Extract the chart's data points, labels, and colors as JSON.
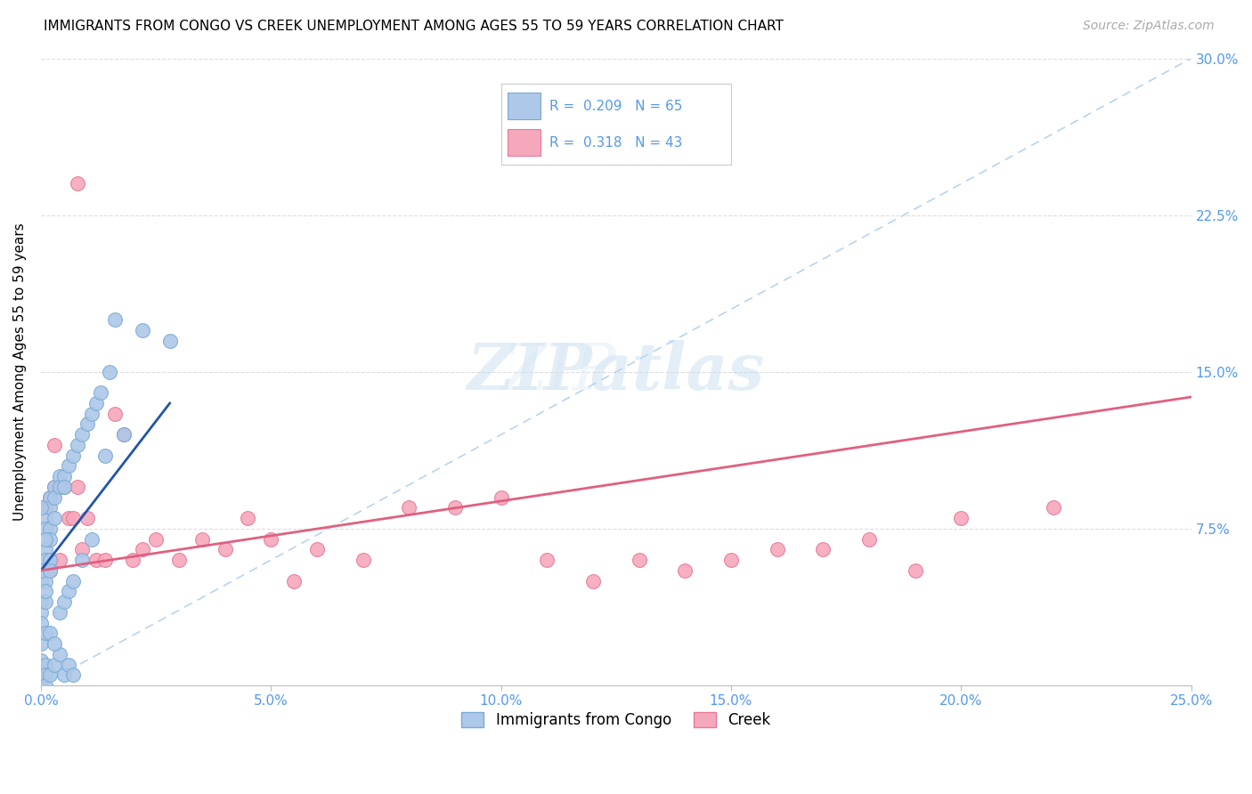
{
  "title": "IMMIGRANTS FROM CONGO VS CREEK UNEMPLOYMENT AMONG AGES 55 TO 59 YEARS CORRELATION CHART",
  "source": "Source: ZipAtlas.com",
  "ylabel": "Unemployment Among Ages 55 to 59 years",
  "xlim": [
    0.0,
    0.25
  ],
  "ylim": [
    0.0,
    0.3
  ],
  "xticks": [
    0.0,
    0.05,
    0.1,
    0.15,
    0.2,
    0.25
  ],
  "yticks": [
    0.0,
    0.075,
    0.15,
    0.225,
    0.3
  ],
  "xticklabels": [
    "0.0%",
    "5.0%",
    "10.0%",
    "15.0%",
    "20.0%",
    "25.0%"
  ],
  "yticklabels_right": [
    "",
    "7.5%",
    "15.0%",
    "22.5%",
    "30.0%"
  ],
  "congo_color": "#adc8e8",
  "creek_color": "#f5a8bc",
  "congo_edge": "#7aaad4",
  "creek_edge": "#e87898",
  "trend_congo_color": "#2255aa",
  "trend_creek_color": "#e06080",
  "ref_line_color": "#b8d4f0",
  "tick_color": "#5599ee",
  "legend_r_congo": "0.209",
  "legend_n_congo": "65",
  "legend_r_creek": "0.318",
  "legend_n_creek": "43",
  "legend_label_congo": "Immigrants from Congo",
  "legend_label_creek": "Creek",
  "congo_x": [
    0.0,
    0.0,
    0.0,
    0.0,
    0.0,
    0.0,
    0.0,
    0.0,
    0.0,
    0.0,
    0.001,
    0.001,
    0.001,
    0.001,
    0.001,
    0.001,
    0.001,
    0.001,
    0.001,
    0.002,
    0.002,
    0.002,
    0.002,
    0.002,
    0.002,
    0.003,
    0.003,
    0.003,
    0.003,
    0.004,
    0.004,
    0.004,
    0.005,
    0.005,
    0.005,
    0.006,
    0.006,
    0.007,
    0.007,
    0.008,
    0.009,
    0.01,
    0.011,
    0.012,
    0.013,
    0.015,
    0.016,
    0.0,
    0.0,
    0.001,
    0.001,
    0.001,
    0.002,
    0.002,
    0.003,
    0.004,
    0.005,
    0.006,
    0.007,
    0.009,
    0.011,
    0.014,
    0.018,
    0.022,
    0.028
  ],
  "congo_y": [
    0.05,
    0.04,
    0.035,
    0.03,
    0.02,
    0.012,
    0.006,
    0.003,
    0.0,
    0.0,
    0.08,
    0.075,
    0.065,
    0.06,
    0.05,
    0.04,
    0.01,
    0.005,
    0.0,
    0.09,
    0.085,
    0.075,
    0.07,
    0.06,
    0.005,
    0.095,
    0.09,
    0.08,
    0.01,
    0.1,
    0.095,
    0.015,
    0.1,
    0.095,
    0.005,
    0.105,
    0.01,
    0.11,
    0.005,
    0.115,
    0.12,
    0.125,
    0.13,
    0.135,
    0.14,
    0.15,
    0.175,
    0.085,
    0.055,
    0.07,
    0.045,
    0.025,
    0.055,
    0.025,
    0.02,
    0.035,
    0.04,
    0.045,
    0.05,
    0.06,
    0.07,
    0.11,
    0.12,
    0.17,
    0.165
  ],
  "creek_x": [
    0.0,
    0.001,
    0.002,
    0.002,
    0.003,
    0.004,
    0.005,
    0.006,
    0.007,
    0.008,
    0.009,
    0.01,
    0.012,
    0.014,
    0.016,
    0.018,
    0.02,
    0.022,
    0.025,
    0.03,
    0.035,
    0.04,
    0.045,
    0.05,
    0.055,
    0.06,
    0.07,
    0.08,
    0.09,
    0.1,
    0.11,
    0.12,
    0.13,
    0.14,
    0.15,
    0.16,
    0.17,
    0.18,
    0.19,
    0.2,
    0.003,
    0.008,
    0.22
  ],
  "creek_y": [
    0.04,
    0.085,
    0.055,
    0.09,
    0.095,
    0.06,
    0.095,
    0.08,
    0.08,
    0.095,
    0.065,
    0.08,
    0.06,
    0.06,
    0.13,
    0.12,
    0.06,
    0.065,
    0.07,
    0.06,
    0.07,
    0.065,
    0.08,
    0.07,
    0.05,
    0.065,
    0.06,
    0.085,
    0.085,
    0.09,
    0.06,
    0.05,
    0.06,
    0.055,
    0.06,
    0.065,
    0.065,
    0.07,
    0.055,
    0.08,
    0.115,
    0.24,
    0.085
  ]
}
